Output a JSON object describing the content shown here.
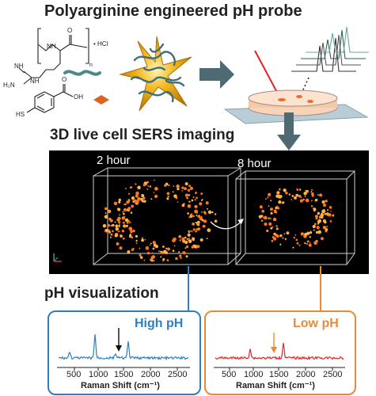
{
  "titles": {
    "probe": "Polyarginine engineered pH probe",
    "imaging": "3D live cell SERS imaging",
    "visualization": "pH visualization"
  },
  "chemistry": {
    "arginine_n": "n",
    "hcl": "• HCl",
    "nh": "NH",
    "h2n": "H₂N",
    "o_top": "O",
    "hs": "HS",
    "oh": "OH",
    "o_acid": "O"
  },
  "imaging": {
    "time_left": "2 hour",
    "time_right": "8 hour"
  },
  "spectra": {
    "high": {
      "label": "High pH",
      "color": "#2d7fbf",
      "ticks": [
        "500",
        "1000",
        "1500",
        "2000",
        "2500"
      ],
      "xlabel": "Raman Shift (cm⁻¹)"
    },
    "low": {
      "label": "Low pH",
      "color": "#e98a3a",
      "trace_color": "#d62b2b",
      "ticks": [
        "500",
        "1000",
        "1500",
        "2000",
        "2500"
      ],
      "xlabel": "Raman Shift (cm⁻¹)"
    }
  },
  "colors": {
    "arrow": "#4f6a73",
    "nanostar_gold": "#f2b418",
    "polymer": "#4a8a8a",
    "diamond": "#d9651e"
  }
}
